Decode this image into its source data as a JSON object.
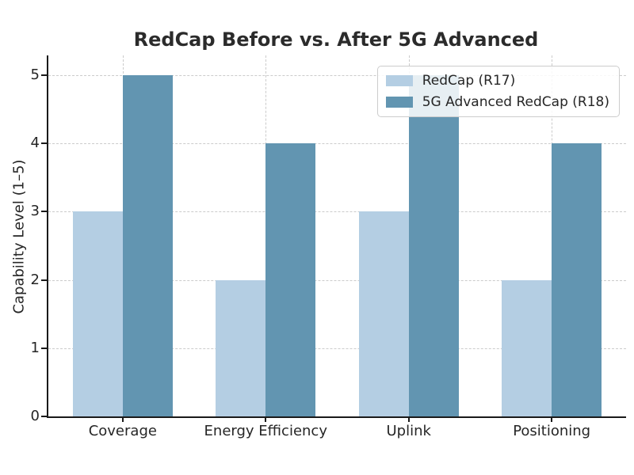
{
  "chart_data": {
    "type": "bar",
    "title": "RedCap Before vs. After 5G Advanced",
    "categories": [
      "Coverage",
      "Energy Efficiency",
      "Uplink",
      "Positioning"
    ],
    "series": [
      {
        "name": "RedCap (R17)",
        "color": "#b4cee3",
        "values": [
          3,
          2,
          3,
          2
        ]
      },
      {
        "name": "5G Advanced RedCap (R18)",
        "color": "#6295b1",
        "values": [
          5,
          4,
          5,
          4
        ]
      }
    ],
    "xlabel": "",
    "ylabel": "Capability Level (1–5)",
    "yticks": [
      0,
      1,
      2,
      3,
      4,
      5
    ],
    "ylim": [
      0,
      5.29
    ],
    "grid": {
      "visible": true,
      "style": "dashed",
      "axis": "both",
      "color": "#cbcbcb"
    },
    "legend": {
      "position": "upper right",
      "entries": [
        "RedCap (R17)",
        "5G Advanced RedCap (R18)"
      ]
    },
    "colors": {
      "text": "#262626",
      "spine": "#1a1a1a",
      "background": "#ffffff"
    }
  }
}
